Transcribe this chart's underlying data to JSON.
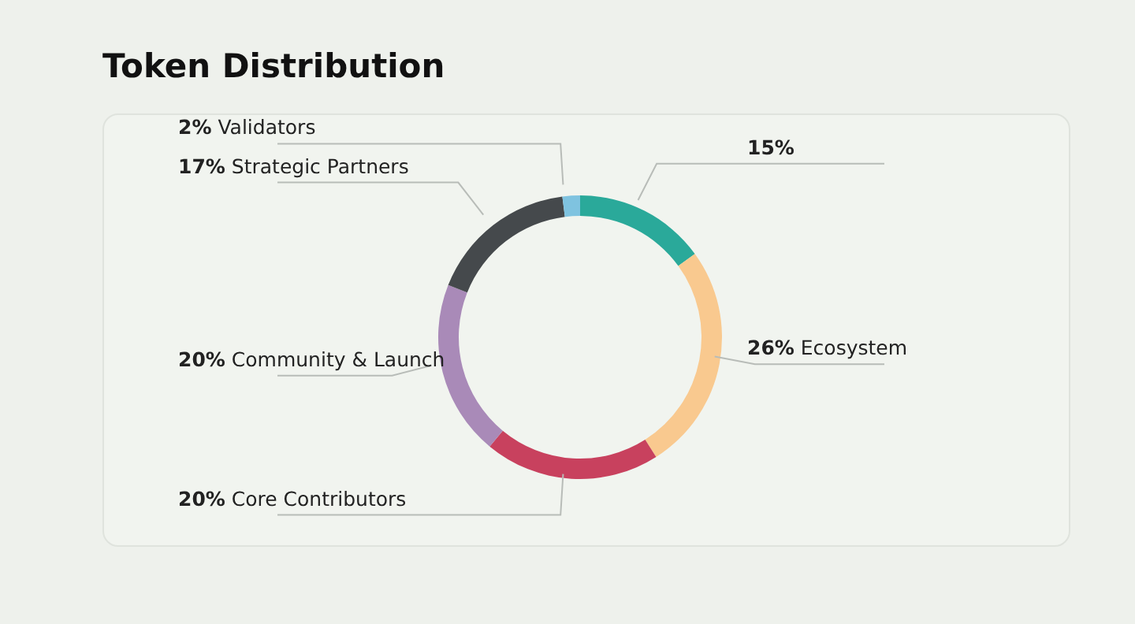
{
  "chart_data": {
    "type": "donut",
    "title": "Token Distribution",
    "categories": [
      null,
      "Ecosystem",
      "Core Contributors",
      "Community & Launch",
      "Strategic Partners",
      "Validators"
    ],
    "values": [
      15,
      26,
      20,
      20,
      17,
      2
    ],
    "value_labels": [
      "15%",
      "26%",
      "20%",
      "20%",
      "17%",
      "2%"
    ],
    "colors": [
      "#2aa99a",
      "#f9c98f",
      "#c8415e",
      "#a98ab8",
      "#45494c",
      "#7fc3e0"
    ],
    "legend": false
  }
}
